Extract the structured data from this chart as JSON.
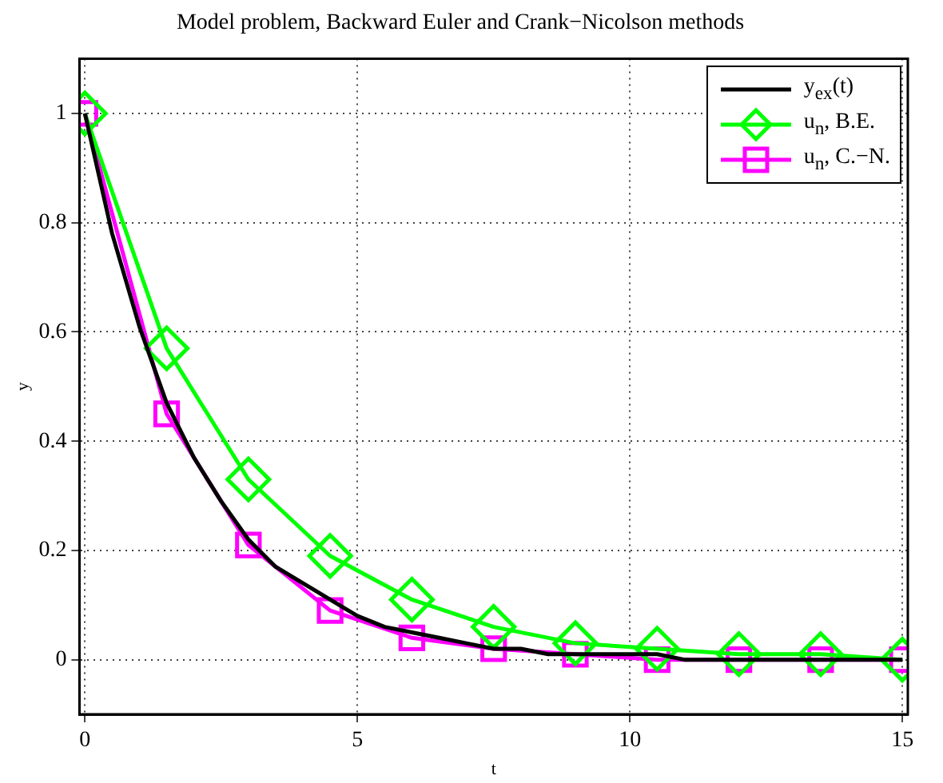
{
  "chart_data": {
    "type": "line",
    "title": "Model problem, Backward Euler and Crank−Nicolson methods",
    "xlabel": "t",
    "ylabel": "y",
    "xlim": [
      -0.1,
      15.1
    ],
    "ylim": [
      -0.1,
      1.1
    ],
    "xticks": [
      0,
      5,
      10,
      15
    ],
    "yticks": [
      0,
      0.2,
      0.4,
      0.6,
      0.8,
      1
    ],
    "grid": true,
    "legend": "top right",
    "line_style": "solid",
    "series": [
      {
        "name": "y$_{ex}$(t)",
        "color": "#000000",
        "marker": "none",
        "x": [
          0,
          0.5,
          1,
          1.5,
          2,
          2.5,
          3,
          3.5,
          4,
          4.5,
          5,
          5.5,
          6,
          6.5,
          7,
          7.5,
          8,
          8.5,
          9,
          9.5,
          10,
          10.5,
          11,
          11.5,
          12,
          12.5,
          13,
          13.5,
          14,
          14.5,
          15
        ],
        "values": [
          1,
          0.78,
          0.61,
          0.47,
          0.37,
          0.29,
          0.22,
          0.17,
          0.14,
          0.11,
          0.08,
          0.06,
          0.05,
          0.04,
          0.03,
          0.02,
          0.02,
          0.01,
          0.01,
          0.01,
          0.01,
          0.01,
          0,
          0,
          0,
          0,
          0,
          0,
          0,
          0,
          0
        ]
      },
      {
        "name": "u$_{n}$, B.E.",
        "color": "#00ff00",
        "marker": "diamond",
        "x": [
          0,
          1.5,
          3,
          4.5,
          6,
          7.5,
          9,
          10.5,
          12,
          13.5,
          15
        ],
        "values": [
          1,
          0.57,
          0.33,
          0.19,
          0.11,
          0.06,
          0.03,
          0.02,
          0.01,
          0.01,
          0
        ]
      },
      {
        "name": "u$_{n}$, C.−N.",
        "color": "#ff00ff",
        "marker": "square",
        "x": [
          0,
          1.5,
          3,
          4.5,
          6,
          7.5,
          9,
          10.5,
          12,
          13.5,
          15
        ],
        "values": [
          1,
          0.45,
          0.21,
          0.09,
          0.04,
          0.02,
          0.01,
          0,
          0,
          0,
          0
        ]
      }
    ]
  }
}
